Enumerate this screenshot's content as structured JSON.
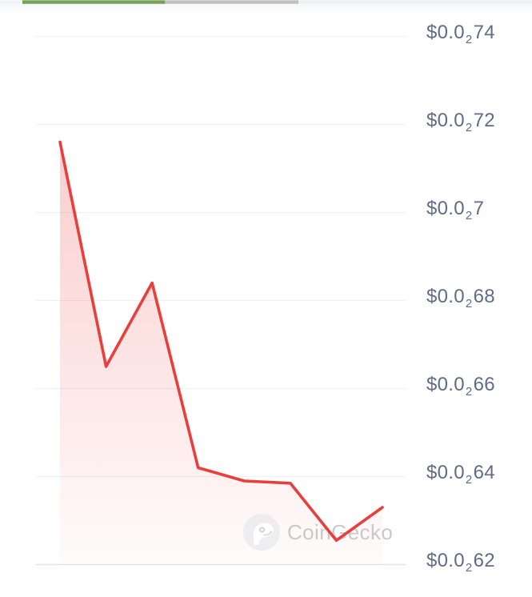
{
  "progress_bar": {
    "value_pct": 52,
    "segments": [
      {
        "name": "track-left",
        "color": "#f2f3f5",
        "from": 0,
        "to": 28
      },
      {
        "name": "progress-complete",
        "color": "#74a258",
        "from": 28,
        "to": 206
      },
      {
        "name": "progress-buffered",
        "color": "#bfbfbf",
        "from": 206,
        "to": 373
      },
      {
        "name": "track-right",
        "color": "#eef0f3",
        "from": 373,
        "to": 665
      }
    ]
  },
  "chart_data": {
    "type": "area",
    "title": "",
    "xlabel": "",
    "ylabel": "",
    "x": [
      0,
      1,
      2,
      3,
      4,
      5,
      6,
      7
    ],
    "series": [
      {
        "name": "price_usd",
        "values": [
          0.00716,
          0.00665,
          0.00684,
          0.00642,
          0.00639,
          0.006385,
          0.006255,
          0.00633
        ]
      }
    ],
    "ylim": [
      0.0062,
      0.0074
    ],
    "grid": true,
    "legend_position": "none",
    "x_labels_visible": false,
    "y_ticks": [
      {
        "value": 0.0074,
        "prefix": "$0.0",
        "sub": "2",
        "rest": "74"
      },
      {
        "value": 0.0072,
        "prefix": "$0.0",
        "sub": "2",
        "rest": "72"
      },
      {
        "value": 0.007,
        "prefix": "$0.0",
        "sub": "2",
        "rest": "7"
      },
      {
        "value": 0.0068,
        "prefix": "$0.0",
        "sub": "2",
        "rest": "68"
      },
      {
        "value": 0.0066,
        "prefix": "$0.0",
        "sub": "2",
        "rest": "66"
      },
      {
        "value": 0.0064,
        "prefix": "$0.0",
        "sub": "2",
        "rest": "64"
      },
      {
        "value": 0.0062,
        "prefix": "$0.0",
        "sub": "2",
        "rest": "62"
      }
    ],
    "line_color": "#ea3e3a",
    "fill_top": "rgba(235,64,60,0.26)",
    "fill_bottom": "rgba(235,64,60,0.02)",
    "grid_color": "#eef0f2",
    "axis_color": "#e2e5e8",
    "label_color": "#5f6c87"
  },
  "watermark": {
    "text": "CoinGecko",
    "logo": "coingecko-gecko-icon"
  }
}
